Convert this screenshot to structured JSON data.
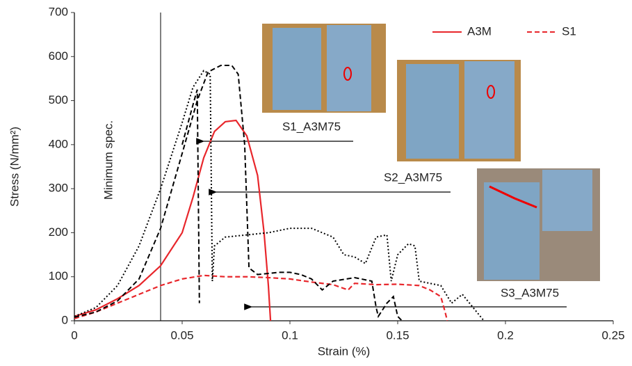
{
  "chart_data": {
    "type": "line",
    "x_label": "Strain (%)",
    "y_label": "Stress (N/mm²)",
    "xlim": [
      0,
      0.25
    ],
    "xticks": [
      0,
      0.05,
      0.1,
      0.15,
      0.2,
      0.25
    ],
    "ylim": [
      0,
      700
    ],
    "yticks": [
      0,
      100,
      200,
      300,
      400,
      500,
      600,
      700
    ],
    "grid": false,
    "legend": "upper right",
    "annotations": [
      "Minimum spec.",
      "S1_A3M75",
      "S2_A3M75",
      "S3_A3M75"
    ],
    "series": [
      {
        "name": "A3M",
        "color": "#e8262b",
        "dash": "solid",
        "x": [
          0,
          0.01,
          0.02,
          0.03,
          0.04,
          0.05,
          0.055,
          0.06,
          0.065,
          0.07,
          0.075,
          0.08,
          0.085,
          0.088,
          0.09,
          0.091
        ],
        "values": [
          10,
          25,
          50,
          80,
          125,
          200,
          280,
          370,
          430,
          452,
          455,
          420,
          330,
          200,
          80,
          0
        ]
      },
      {
        "name": "S1",
        "color": "#e8262b",
        "dash": "dashed",
        "x": [
          0,
          0.01,
          0.02,
          0.03,
          0.04,
          0.05,
          0.06,
          0.07,
          0.08,
          0.09,
          0.1,
          0.11,
          0.12,
          0.127,
          0.13,
          0.14,
          0.15,
          0.16,
          0.165,
          0.17,
          0.172,
          0.173
        ],
        "values": [
          5,
          20,
          40,
          60,
          80,
          95,
          103,
          100,
          100,
          98,
          95,
          88,
          82,
          70,
          85,
          82,
          83,
          80,
          70,
          55,
          20,
          0
        ]
      },
      {
        "color": "#000000",
        "dash": "dashed",
        "x": [
          0,
          0.01,
          0.02,
          0.03,
          0.04,
          0.05,
          0.057,
          0.062,
          0.068,
          0.073,
          0.076,
          0.079,
          0.081,
          0.085,
          0.095,
          0.1,
          0.105,
          0.11,
          0.115,
          0.12,
          0.13,
          0.138,
          0.14,
          0.141,
          0.145,
          0.148,
          0.15,
          0.152
        ],
        "values": [
          8,
          20,
          45,
          95,
          210,
          380,
          500,
          565,
          580,
          580,
          560,
          400,
          120,
          105,
          110,
          110,
          105,
          95,
          70,
          90,
          98,
          90,
          30,
          10,
          40,
          55,
          10,
          0
        ]
      },
      {
        "color": "#000000",
        "dash": "dashed",
        "x": [
          0.05,
          0.055,
          0.057,
          0.058
        ],
        "values": [
          400,
          490,
          525,
          40
        ]
      },
      {
        "color": "#000000",
        "dash": "dotted",
        "x": [
          0,
          0.01,
          0.02,
          0.03,
          0.04,
          0.05,
          0.055,
          0.06,
          0.063,
          0.064,
          0.065,
          0.07,
          0.08,
          0.09,
          0.1,
          0.11,
          0.12,
          0.125,
          0.13,
          0.135,
          0.14,
          0.145,
          0.147,
          0.15,
          0.155,
          0.158,
          0.16,
          0.17,
          0.175,
          0.18,
          0.185,
          0.19
        ],
        "values": [
          10,
          30,
          80,
          170,
          300,
          450,
          530,
          568,
          560,
          90,
          170,
          190,
          195,
          200,
          210,
          210,
          190,
          150,
          145,
          130,
          190,
          195,
          90,
          150,
          175,
          170,
          90,
          80,
          40,
          60,
          30,
          0
        ]
      }
    ]
  }
}
